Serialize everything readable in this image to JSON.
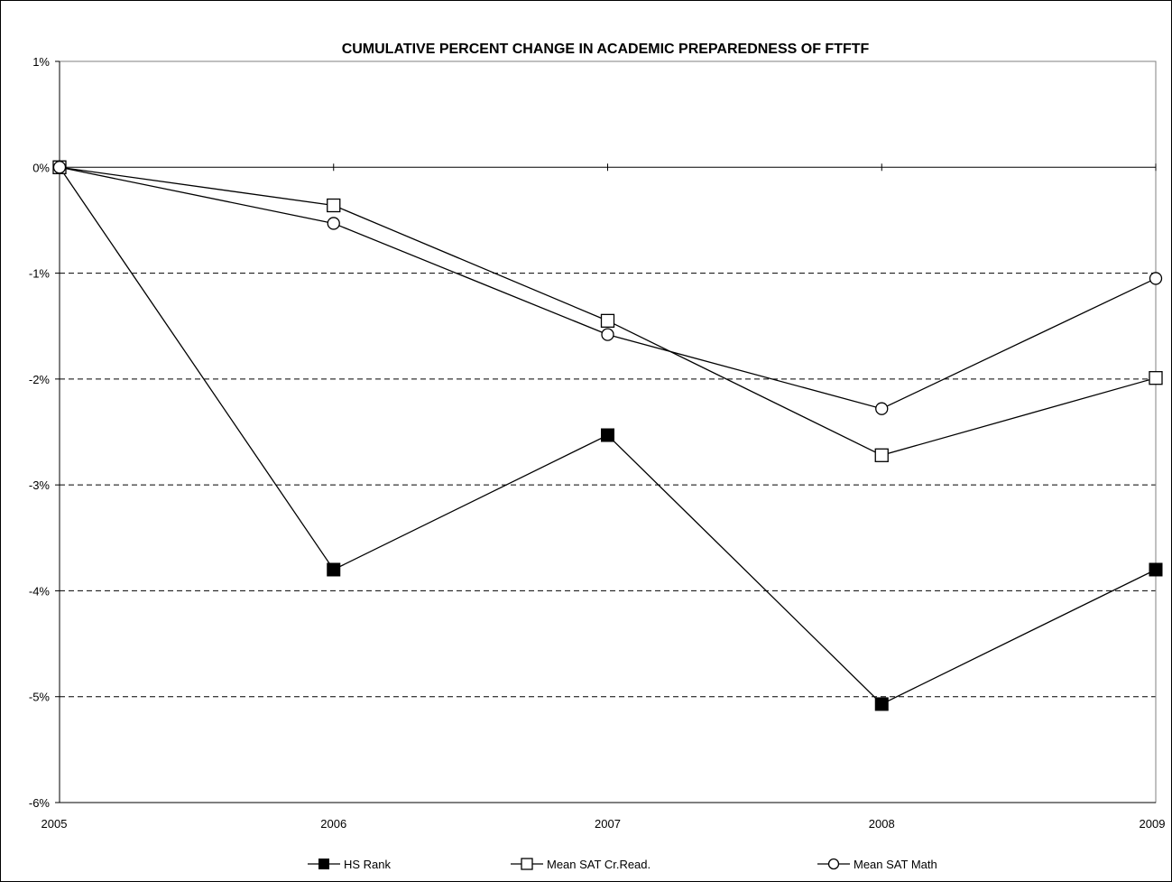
{
  "chart_data": {
    "type": "line",
    "title": "CUMULATIVE PERCENT CHANGE IN ACADEMIC PREPAREDNESS OF FTFTF",
    "xlabel": "",
    "ylabel": "",
    "categories": [
      "2005",
      "2006",
      "2007",
      "2008",
      "2009"
    ],
    "ylim": [
      -6,
      1
    ],
    "y_ticks": [
      1,
      0,
      -1,
      -2,
      -3,
      -4,
      -5,
      -6
    ],
    "y_tick_labels": [
      "1%",
      "0%",
      "-1%",
      "-2%",
      "-3%",
      "-4%",
      "-5%",
      "-6%"
    ],
    "grid": "dashed horizontal lines at negative percents",
    "legend_position": "bottom",
    "series": [
      {
        "name": "HS Rank",
        "marker": "filled-square",
        "values": [
          0,
          -3.8,
          -2.53,
          -5.07,
          -3.8
        ]
      },
      {
        "name": "Mean SAT Cr.Read.",
        "marker": "open-square",
        "values": [
          0,
          -0.36,
          -1.45,
          -2.72,
          -1.99
        ]
      },
      {
        "name": "Mean SAT Math",
        "marker": "open-circle",
        "values": [
          0,
          -0.53,
          -1.58,
          -2.28,
          -1.05
        ]
      }
    ],
    "colors": {
      "line": "#000000",
      "grid": "#000000",
      "background": "#ffffff"
    }
  }
}
